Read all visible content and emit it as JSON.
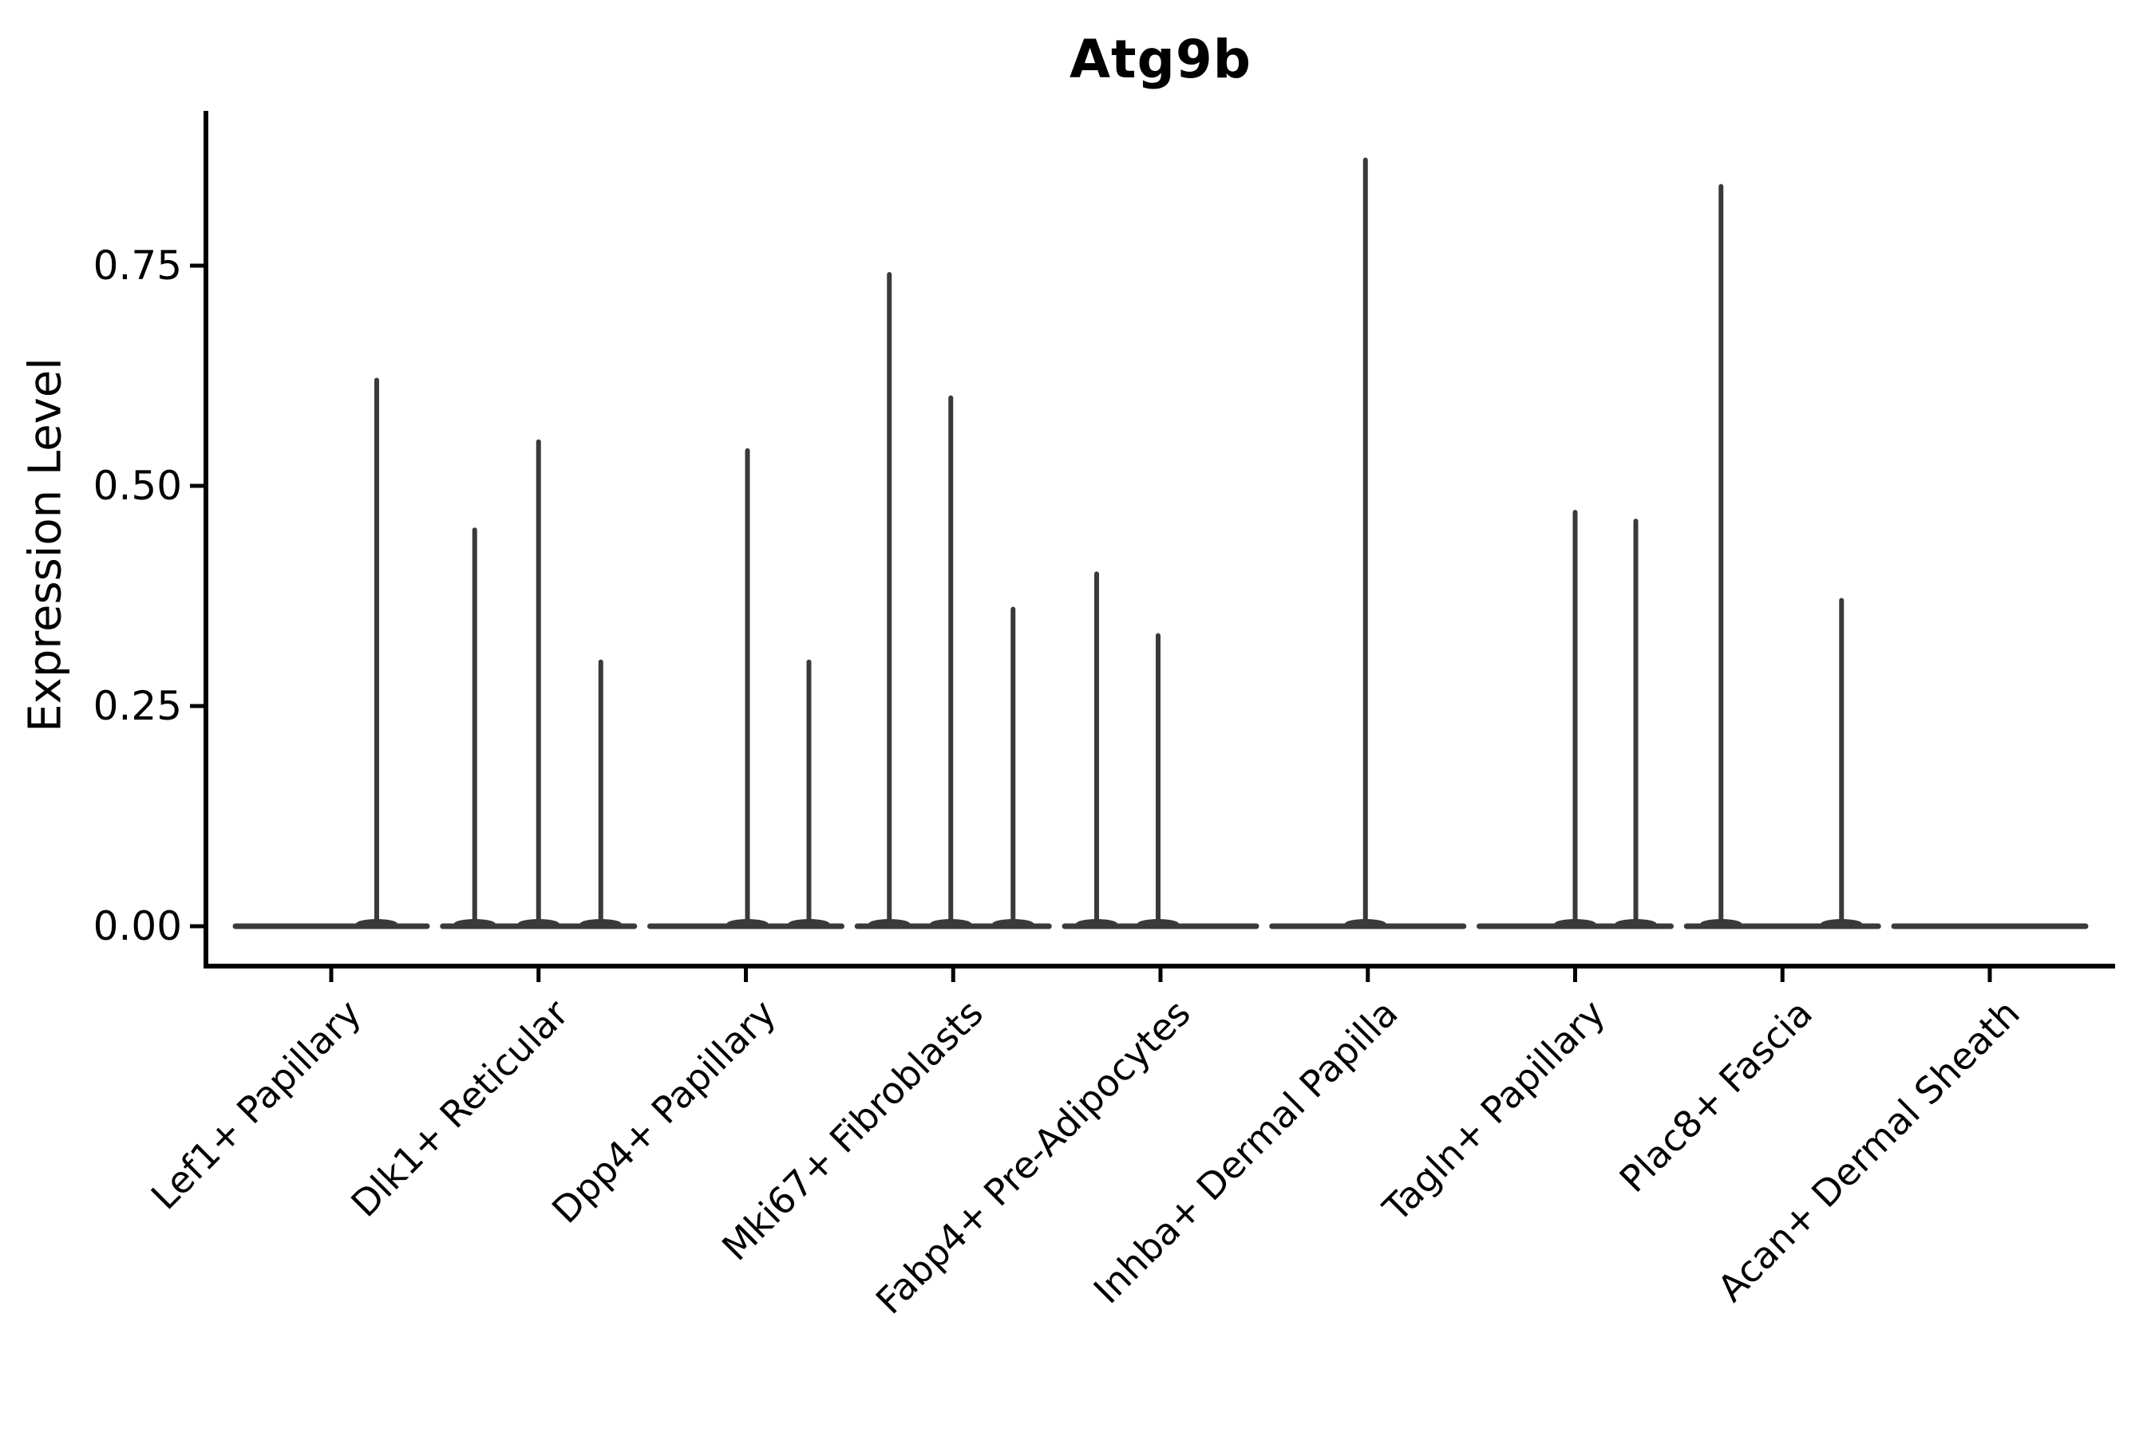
{
  "figure": {
    "background_color": "#ffffff",
    "axis_color": "#000000",
    "violin_color": "#3a3a3a",
    "text_color": "#000000"
  },
  "chart_data": {
    "type": "violin",
    "title": "Atg9b",
    "xlabel": "",
    "ylabel": "Expression Level",
    "ylim": [
      -0.05,
      0.93
    ],
    "grid": false,
    "legend": null,
    "yticks": [
      {
        "label": "0.00",
        "value": 0.0
      },
      {
        "label": "0.25",
        "value": 0.25
      },
      {
        "label": "0.50",
        "value": 0.5
      },
      {
        "label": "0.75",
        "value": 0.75
      }
    ],
    "categories": [
      "Lef1+ Papillary",
      "Dlk1+ Reticular",
      "Dpp4+ Papillary",
      "Mki67+ Fibroblasts",
      "Fabp4+ Pre-Adipocytes",
      "Inhba+ Dermal Papilla",
      "Tagln+ Papillary",
      "Plac8+ Fascia",
      "Acan+ Dermal Sheath"
    ],
    "series": [
      {
        "name": "Lef1+ Papillary",
        "points": [
          {
            "value": 0.62,
            "jitter": 57
          }
        ]
      },
      {
        "name": "Dlk1+ Reticular",
        "points": [
          {
            "value": 0.45,
            "jitter": -80
          },
          {
            "value": 0.55,
            "jitter": 0
          },
          {
            "value": 0.3,
            "jitter": 78
          }
        ]
      },
      {
        "name": "Dpp4+ Papillary",
        "points": [
          {
            "value": 0.54,
            "jitter": 2
          },
          {
            "value": 0.3,
            "jitter": 79
          }
        ]
      },
      {
        "name": "Mki67+ Fibroblasts",
        "points": [
          {
            "value": 0.74,
            "jitter": -80
          },
          {
            "value": 0.6,
            "jitter": -3
          },
          {
            "value": 0.36,
            "jitter": 75
          }
        ]
      },
      {
        "name": "Fabp4+ Pre-Adipocytes",
        "points": [
          {
            "value": 0.4,
            "jitter": -80
          },
          {
            "value": 0.33,
            "jitter": -3
          }
        ]
      },
      {
        "name": "Inhba+ Dermal Papilla",
        "points": [
          {
            "value": 0.87,
            "jitter": -3
          }
        ]
      },
      {
        "name": "Tagln+ Papillary",
        "points": [
          {
            "value": 0.47,
            "jitter": 0
          },
          {
            "value": 0.46,
            "jitter": 76
          }
        ]
      },
      {
        "name": "Plac8+ Fascia",
        "points": [
          {
            "value": 0.84,
            "jitter": -77
          },
          {
            "value": 0.37,
            "jitter": 74
          }
        ]
      },
      {
        "name": "Acan+ Dermal Sheath",
        "points": []
      }
    ]
  }
}
